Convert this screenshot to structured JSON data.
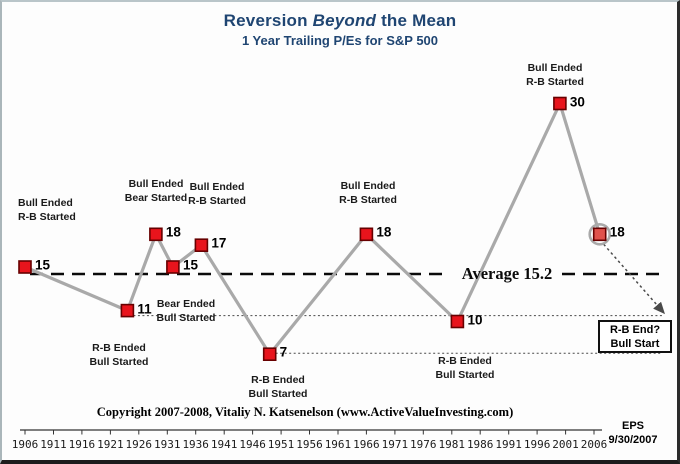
{
  "chart_data": {
    "type": "line",
    "title_pre": "Reversion ",
    "title_italic": "Beyond",
    "title_post": " the Mean",
    "subtitle": "1 Year Trailing P/Es for S&P 500",
    "series_points": [
      {
        "year": 1906,
        "value": 15
      },
      {
        "year": 1924,
        "value": 11,
        "ref_line": true
      },
      {
        "year": 1929,
        "value": 18
      },
      {
        "year": 1932,
        "value": 15
      },
      {
        "year": 1937,
        "value": 17
      },
      {
        "year": 1949,
        "value": 7,
        "ref_line": true
      },
      {
        "year": 1966,
        "value": 18
      },
      {
        "year": 1982,
        "value": 10
      },
      {
        "year": 2000,
        "value": 30
      },
      {
        "year": 2007,
        "value": 18,
        "circled": true
      }
    ],
    "x_ticks": [
      "1906",
      "1911",
      "1916",
      "1921",
      "1926",
      "1931",
      "1936",
      "1941",
      "1946",
      "1951",
      "1956",
      "1961",
      "1966",
      "1971",
      "1976",
      "1981",
      "1986",
      "1991",
      "1996",
      "2001",
      "2006"
    ],
    "average_value": 15.2,
    "average_label": "Average 15.2",
    "xlabel": "",
    "ylabel": "",
    "legend": "none",
    "grid": "off"
  },
  "annotations": [
    {
      "line1": "Bull Ended",
      "line2": "R-B Started"
    },
    {
      "line1": "Bull Ended",
      "line2": "Bear Started"
    },
    {
      "line1": "Bull Ended",
      "line2": "R-B Started"
    },
    {
      "line1": "Bear Ended",
      "line2": "Bull Started"
    },
    {
      "line1": "R-B Ended",
      "line2": "Bull Started"
    },
    {
      "line1": "R-B Ended",
      "line2": "Bull Started"
    },
    {
      "line1": "Bull Ended",
      "line2": "R-B Started"
    },
    {
      "line1": "R-B Ended",
      "line2": "Bull Started"
    },
    {
      "line1": "Bull Ended",
      "line2": "R-B Started"
    }
  ],
  "callout_box": {
    "line1": "R-B End?",
    "line2": "Bull Start"
  },
  "footer": {
    "copyright": "Copyright 2007-2008, Vitaliy N. Katsenelson (www.ActiveValueInvesting.com)",
    "eps_label": "EPS",
    "eps_date": "9/30/2007"
  },
  "colors": {
    "title": "#1f4572",
    "line": "#a9a9a9",
    "marker_fill": "#e8141c",
    "marker_fill_circled": "#e0524c",
    "marker_stroke": "#670000",
    "average_line": "#0a0a0a",
    "dotted": "#4a4a4a",
    "axis": "#333333"
  }
}
